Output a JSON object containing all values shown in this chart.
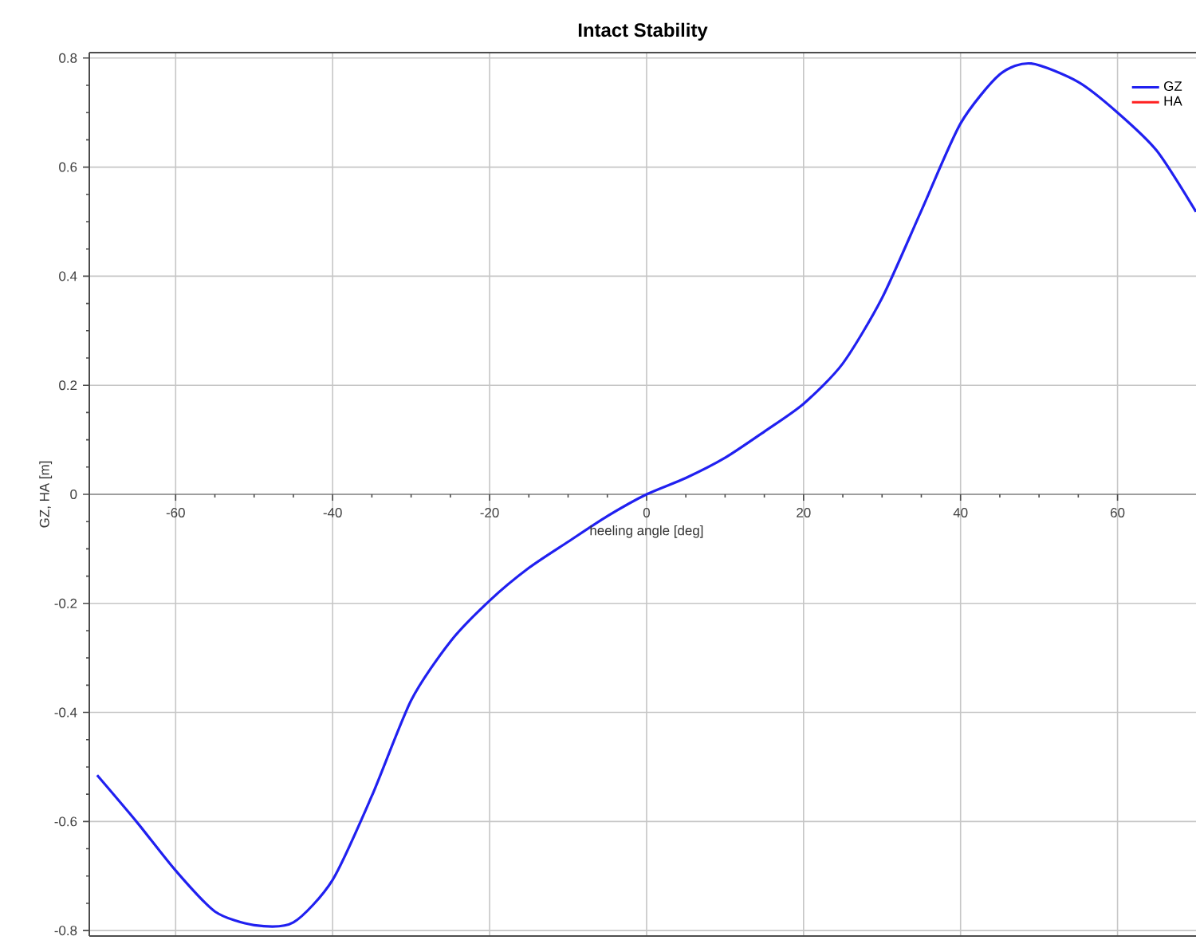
{
  "chart_data": {
    "type": "line",
    "title": "Intact Stability",
    "xlabel": "heeling angle [deg]",
    "ylabel": "GZ, HA [m]",
    "x": [
      -70,
      -65,
      -60,
      -55,
      -50,
      -45,
      -40,
      -35,
      -30,
      -25,
      -20,
      -15,
      -10,
      -5,
      0,
      5,
      10,
      15,
      20,
      25,
      30,
      35,
      40,
      45,
      49,
      55,
      60,
      65,
      70
    ],
    "series": [
      {
        "name": "GZ",
        "color": "#2020f0",
        "values": [
          -0.515,
          -0.6,
          -0.69,
          -0.765,
          -0.79,
          -0.785,
          -0.707,
          -0.553,
          -0.378,
          -0.27,
          -0.195,
          -0.135,
          -0.087,
          -0.04,
          0,
          0.03,
          0.067,
          0.115,
          0.166,
          0.24,
          0.36,
          0.52,
          0.68,
          0.77,
          0.79,
          0.756,
          0.7,
          0.63,
          0.518
        ]
      },
      {
        "name": "HA",
        "color": "#ff2020",
        "values": [
          null,
          null,
          null,
          null,
          null,
          null,
          null,
          null,
          null,
          null,
          null,
          null,
          null,
          null,
          null,
          null,
          null,
          null,
          null,
          null,
          null,
          null,
          null,
          null,
          null,
          null,
          null,
          null,
          null
        ]
      }
    ],
    "xlim": [
      -71,
      70
    ],
    "ylim": [
      -0.81,
      0.81
    ],
    "xticks": [
      -60,
      -40,
      -20,
      0,
      20,
      40,
      60
    ],
    "yticks": [
      -0.8,
      -0.6,
      -0.4,
      -0.2,
      0,
      0.2,
      0.4,
      0.6,
      0.8
    ],
    "grid": true,
    "legend": "top right",
    "marker": "none",
    "line_style": "solid"
  }
}
